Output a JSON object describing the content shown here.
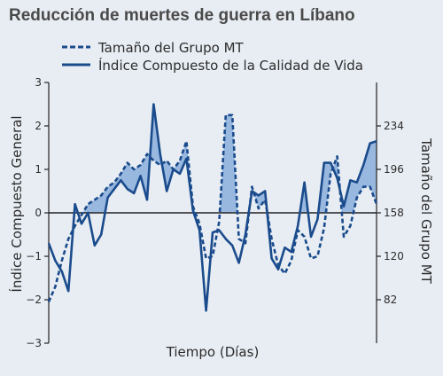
{
  "chart_data": {
    "type": "line",
    "title": "Reducción de muertes de guerra en Líbano",
    "xlabel": "Tiempo (Días)",
    "ylabel_left": "Índice Compuesto General",
    "ylabel_right": "Tamaño del Grupo MT",
    "y_left_range": [
      -3,
      3
    ],
    "y_left_ticks": [
      "3",
      "2",
      "1",
      "0",
      "−1",
      "−2",
      "−3"
    ],
    "y_right_range": [
      44,
      272
    ],
    "y_right_ticks": [
      "234",
      "196",
      "158",
      "120",
      "82"
    ],
    "x_range": [
      0,
      100
    ],
    "grid": false,
    "legend_position": "top-left",
    "series": [
      {
        "name": "Tamaño del Grupo MT",
        "style": "dashed",
        "axis": "left",
        "color": "#1a4b8c",
        "x": [
          0,
          2,
          4,
          6,
          8,
          10,
          12,
          14,
          16,
          18,
          20,
          22,
          24,
          26,
          28,
          30,
          32,
          34,
          36,
          38,
          40,
          42,
          44,
          46,
          48,
          50,
          52,
          54,
          56,
          58,
          60,
          62,
          64,
          66,
          68,
          70,
          72,
          74,
          76,
          78,
          80,
          82,
          84,
          86,
          88,
          90,
          92,
          94,
          96,
          98,
          100
        ],
        "values": [
          -2.05,
          -1.7,
          -1.1,
          -0.6,
          -0.3,
          -0.05,
          0.2,
          0.3,
          0.4,
          0.6,
          0.7,
          0.9,
          1.15,
          1.0,
          1.1,
          1.35,
          1.2,
          1.1,
          1.2,
          1.0,
          1.2,
          1.65,
          0.15,
          -0.25,
          -1.05,
          -1.0,
          -0.2,
          2.25,
          2.25,
          -0.6,
          -0.7,
          0.6,
          0.1,
          0.3,
          -0.6,
          -1.2,
          -1.4,
          -1.1,
          -0.4,
          -0.55,
          -1.05,
          -1.0,
          -0.35,
          0.9,
          1.3,
          -0.55,
          -0.3,
          0.35,
          0.6,
          0.6,
          0.2
        ]
      },
      {
        "name": "Índice Compuesto de la Calidad de Vida",
        "style": "solid",
        "axis": "left",
        "color": "#1a4b8c",
        "x": [
          0,
          2,
          4,
          6,
          8,
          10,
          12,
          14,
          16,
          18,
          20,
          22,
          24,
          26,
          28,
          30,
          32,
          34,
          36,
          38,
          40,
          42,
          44,
          46,
          48,
          50,
          52,
          54,
          56,
          58,
          60,
          62,
          64,
          66,
          68,
          70,
          72,
          74,
          76,
          78,
          80,
          82,
          84,
          86,
          88,
          90,
          92,
          94,
          96,
          98,
          100
        ],
        "values": [
          -0.7,
          -1.1,
          -1.35,
          -1.8,
          0.2,
          -0.25,
          0.0,
          -0.75,
          -0.5,
          0.35,
          0.55,
          0.75,
          0.55,
          0.45,
          0.85,
          0.3,
          2.5,
          1.35,
          0.5,
          1.0,
          0.9,
          1.25,
          0.05,
          -0.4,
          -2.25,
          -0.45,
          -0.4,
          -0.6,
          -0.75,
          -1.15,
          -0.5,
          0.5,
          0.4,
          0.5,
          -1.05,
          -1.3,
          -0.8,
          -0.9,
          -0.3,
          0.7,
          -0.55,
          -0.15,
          1.15,
          1.15,
          0.8,
          0.15,
          0.75,
          0.7,
          1.1,
          1.6,
          1.65
        ]
      }
    ]
  }
}
